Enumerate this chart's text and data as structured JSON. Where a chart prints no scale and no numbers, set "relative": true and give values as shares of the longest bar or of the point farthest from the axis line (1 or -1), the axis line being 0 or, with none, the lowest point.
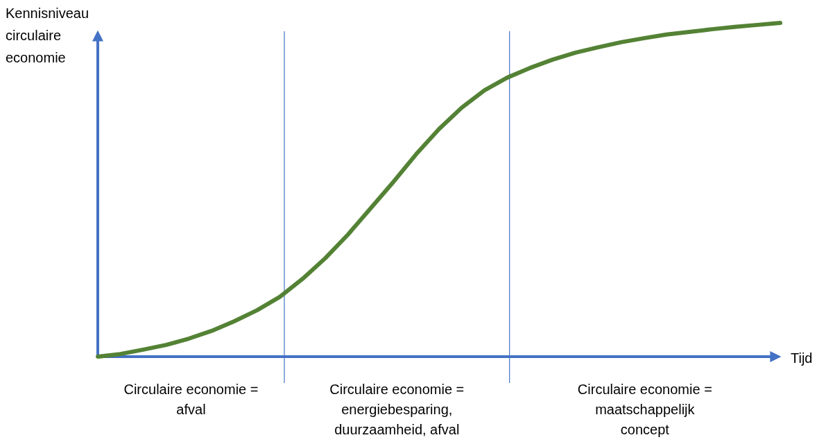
{
  "chart_data": {
    "type": "line",
    "relative": true,
    "ylabel": "Kennisniveau circulaire economie",
    "xlabel": "Tijd",
    "marker": "none",
    "line_style": "solid",
    "categories": [
      null,
      null,
      null,
      null,
      null,
      null,
      null,
      null,
      null,
      null,
      null,
      null,
      null,
      null,
      null,
      null,
      null,
      null,
      null,
      null,
      null,
      null,
      null,
      null,
      null,
      null,
      null,
      null,
      null,
      null,
      null
    ],
    "series": [
      {
        "color": "#548235",
        "values": [
          0,
          0.008,
          0.021,
          0.035,
          0.054,
          0.077,
          0.106,
          0.139,
          0.179,
          0.233,
          0.295,
          0.366,
          0.445,
          0.524,
          0.607,
          0.682,
          0.746,
          0.798,
          0.836,
          0.865,
          0.89,
          0.911,
          0.927,
          0.942,
          0.954,
          0.965,
          0.973,
          0.981,
          0.988,
          0.994,
          1
        ]
      }
    ],
    "annotations": [
      "Circulaire economie = afval",
      "Circulaire economie = energiebesparing, duurzaamheid, afval",
      "Circulaire economie = maatschappelijk concept"
    ]
  }
}
